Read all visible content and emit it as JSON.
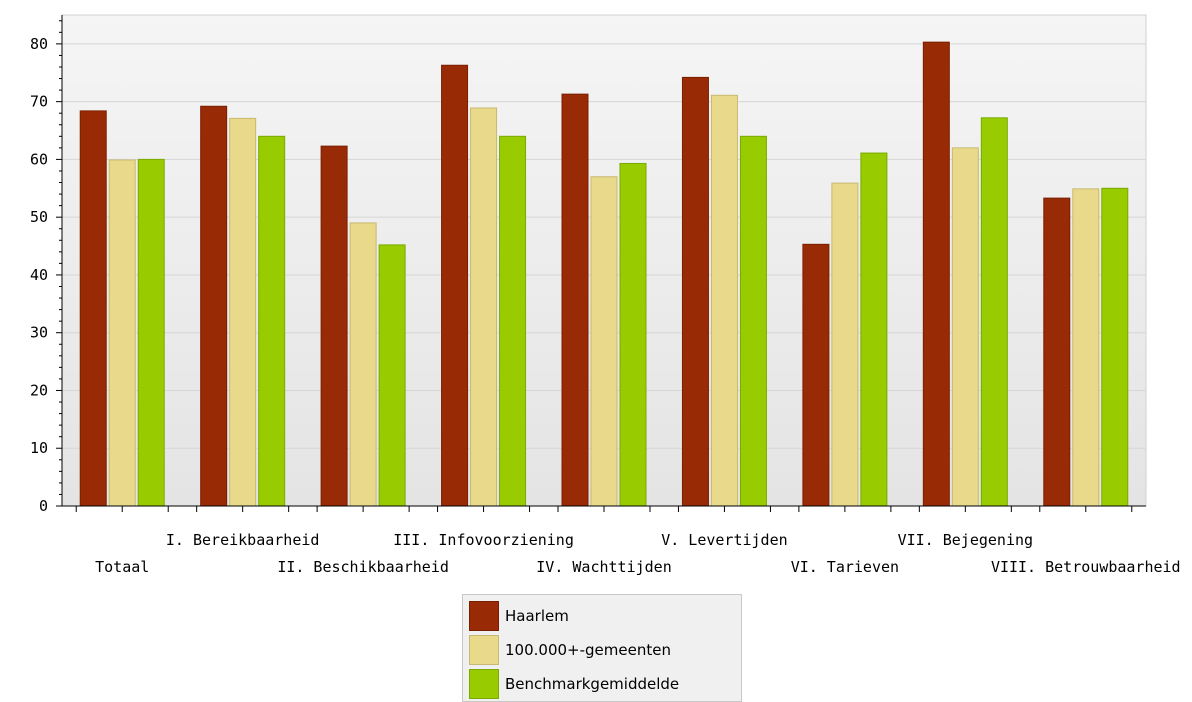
{
  "chart_data": {
    "type": "bar",
    "categories": [
      "Totaal",
      "I. Bereikbaarheid",
      "II. Beschikbaarheid",
      "III. Infovoorziening",
      "IV. Wachttijden",
      "V. Levertijden",
      "VI. Tarieven",
      "VII. Bejegening",
      "VIII. Betrouwbaarheid"
    ],
    "series": [
      {
        "name": "Haarlem",
        "color": "#992a06",
        "values": [
          68.4,
          69.2,
          62.3,
          76.3,
          71.3,
          74.2,
          45.3,
          80.3,
          53.3
        ]
      },
      {
        "name": "100.000+-gemeenten",
        "color": "#e8da8a",
        "values": [
          59.9,
          67.1,
          49.0,
          68.9,
          57.0,
          71.1,
          55.9,
          62.0,
          54.9
        ]
      },
      {
        "name": "Benchmarkgemiddelde",
        "color": "#99cc00",
        "values": [
          60.0,
          64.0,
          45.2,
          64.0,
          59.3,
          64.0,
          61.1,
          67.2,
          55.0
        ]
      }
    ],
    "ylim": [
      0,
      85
    ],
    "yticks": [
      "0",
      "10",
      "20",
      "30",
      "40",
      "50",
      "60",
      "70",
      "80"
    ],
    "xlabel": "",
    "ylabel": "",
    "grid": true,
    "legend_position": "bottom"
  }
}
